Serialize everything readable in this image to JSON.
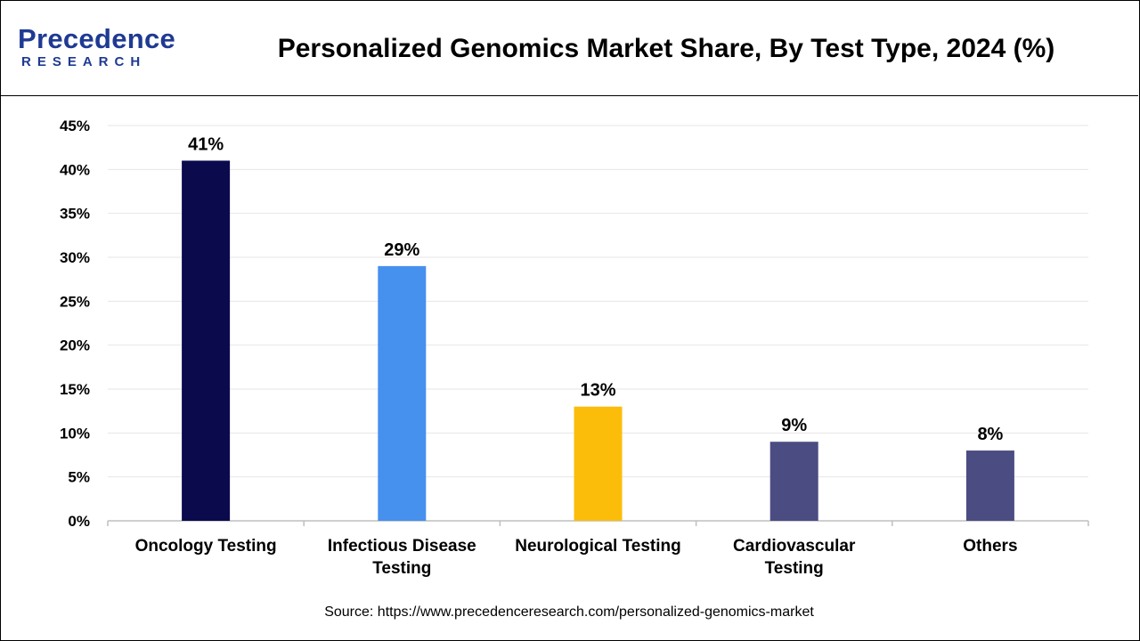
{
  "logo": {
    "wordmark": "Precedence",
    "subtitle": "RESEARCH"
  },
  "title": "Personalized Genomics Market Share, By Test Type, 2024 (%)",
  "source": "Source: https://www.precedenceresearch.com/personalized-genomics-market",
  "colors": {
    "oncology": "#0a0a4d",
    "infectious": "#4690ee",
    "neurological": "#fbbd0a",
    "cardiovascular": "#4b4c82",
    "others": "#4b4c82",
    "brand": "#1f3a93",
    "grid": "#e6e6e6",
    "axis": "#bfbfbf"
  },
  "chart_data": {
    "type": "bar",
    "categories": [
      [
        "Oncology Testing"
      ],
      [
        "Infectious Disease",
        "Testing"
      ],
      [
        "Neurological Testing"
      ],
      [
        "Cardiovascular",
        "Testing"
      ],
      [
        "Others"
      ]
    ],
    "values": [
      41,
      29,
      13,
      9,
      8
    ],
    "value_labels": [
      "41%",
      "29%",
      "13%",
      "9%",
      "8%"
    ],
    "bar_colors": [
      "#0a0a4d",
      "#4690ee",
      "#fbbd0a",
      "#4b4c82",
      "#4b4c82"
    ],
    "yticks": [
      0,
      5,
      10,
      15,
      20,
      25,
      30,
      35,
      40,
      45
    ],
    "ytick_labels": [
      "0%",
      "5%",
      "10%",
      "15%",
      "20%",
      "25%",
      "30%",
      "35%",
      "40%",
      "45%"
    ],
    "ylim": [
      0,
      45
    ],
    "grid": true,
    "xlabel": "",
    "ylabel": ""
  }
}
